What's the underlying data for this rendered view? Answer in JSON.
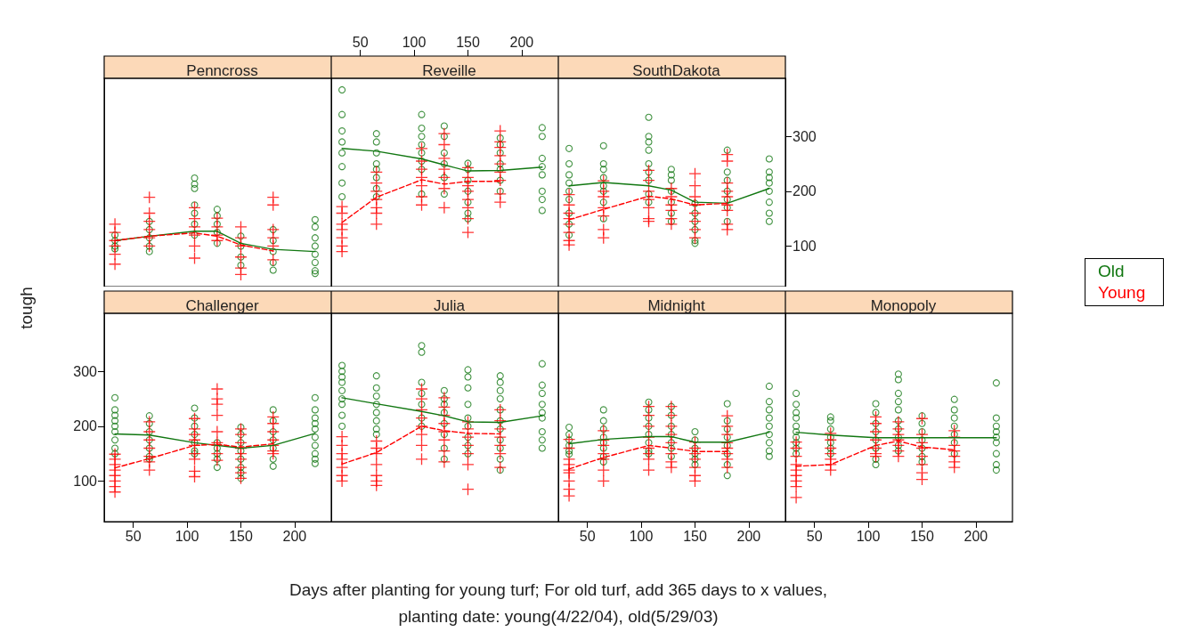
{
  "chart_data": [
    {
      "type": "scatter",
      "title": "Penncross",
      "xlabel": "Days after planting for young turf; For old turf, add 365 days to x values,\nplanting date: young(4/22/04), old(5/29/03)",
      "ylabel": "tough",
      "legend": "right",
      "xlim": [
        23,
        234
      ],
      "xticks": [
        50,
        100,
        150,
        200
      ],
      "ylim": [
        26,
        406
      ],
      "yticks": [
        100,
        200,
        300
      ],
      "tick_labels": false,
      "series": [
        {
          "name": "Old",
          "color": "#117711",
          "marker": "circle",
          "x": [
            33,
            33,
            33,
            33,
            65,
            65,
            65,
            65,
            65,
            107,
            107,
            107,
            107,
            107,
            107,
            107,
            128,
            128,
            128,
            128,
            128,
            150,
            150,
            150,
            150,
            180,
            180,
            180,
            180,
            180,
            219,
            219,
            219,
            219,
            219,
            219,
            219,
            219
          ],
          "values": [
            120,
            110,
            100,
            95,
            145,
            130,
            115,
            100,
            90,
            224,
            213,
            205,
            175,
            160,
            140,
            120,
            167,
            155,
            140,
            125,
            105,
            118,
            100,
            80,
            65,
            130,
            110,
            90,
            70,
            56,
            148,
            135,
            115,
            100,
            85,
            70,
            55,
            50
          ]
        },
        {
          "name": "Young",
          "color": "#ff0000",
          "marker": "cross",
          "x": [
            33,
            33,
            33,
            33,
            33,
            33,
            65,
            65,
            65,
            65,
            65,
            65,
            107,
            107,
            107,
            107,
            107,
            107,
            128,
            128,
            128,
            128,
            150,
            150,
            150,
            150,
            150,
            150,
            180,
            180,
            180,
            180,
            180,
            180
          ],
          "values": [
            140,
            125,
            110,
            100,
            85,
            67,
            189,
            160,
            145,
            130,
            115,
            100,
            170,
            150,
            135,
            120,
            100,
            78,
            151,
            135,
            120,
            110,
            135,
            115,
            100,
            80,
            60,
            48,
            189,
            175,
            130,
            115,
            100,
            75
          ]
        },
        {
          "type": "line",
          "color": "#117711",
          "line_style": "solid",
          "x": [
            33,
            65,
            107,
            128,
            150,
            180,
            219
          ],
          "values": [
            110,
            118,
            127,
            127,
            105,
            94,
            90
          ]
        },
        {
          "type": "line",
          "color": "#ff0000",
          "line_style": "dashed",
          "x": [
            33,
            65,
            107,
            128,
            150,
            180
          ],
          "values": [
            110,
            118,
            124,
            118,
            102,
            91
          ]
        }
      ]
    },
    {
      "type": "scatter",
      "title": "Reveille",
      "xlim": [
        23,
        234
      ],
      "xticks": [
        50,
        100,
        150,
        200
      ],
      "ylim": [
        26,
        406
      ],
      "yticks": [
        100,
        200,
        300
      ],
      "tick_labels": "x",
      "series": [
        {
          "color": "#117711",
          "marker": "circle",
          "x": [
            33,
            33,
            33,
            33,
            33,
            33,
            33,
            33,
            65,
            65,
            65,
            65,
            65,
            65,
            65,
            65,
            107,
            107,
            107,
            107,
            107,
            107,
            107,
            107,
            128,
            128,
            128,
            128,
            128,
            128,
            150,
            150,
            150,
            150,
            150,
            150,
            150,
            180,
            180,
            180,
            180,
            180,
            180,
            180,
            219,
            219,
            219,
            219,
            219,
            219,
            219,
            219
          ],
          "values": [
            385,
            340,
            310,
            290,
            270,
            245,
            215,
            190,
            305,
            290,
            270,
            250,
            240,
            225,
            205,
            190,
            340,
            315,
            300,
            285,
            270,
            255,
            240,
            195,
            319,
            300,
            270,
            250,
            225,
            195,
            251,
            240,
            220,
            200,
            180,
            160,
            150,
            297,
            285,
            270,
            250,
            240,
            220,
            200,
            316,
            300,
            260,
            245,
            230,
            200,
            185,
            165
          ]
        },
        {
          "color": "#ff0000",
          "marker": "cross",
          "x": [
            33,
            33,
            33,
            33,
            33,
            33,
            33,
            65,
            65,
            65,
            65,
            65,
            65,
            65,
            107,
            107,
            107,
            107,
            107,
            107,
            107,
            128,
            128,
            128,
            128,
            128,
            128,
            128,
            150,
            150,
            150,
            150,
            150,
            150,
            150,
            150,
            180,
            180,
            180,
            180,
            180,
            180,
            180,
            180,
            180
          ],
          "values": [
            172,
            160,
            140,
            130,
            115,
            100,
            90,
            235,
            215,
            200,
            185,
            170,
            160,
            140,
            278,
            255,
            240,
            225,
            210,
            190,
            175,
            305,
            285,
            260,
            240,
            225,
            205,
            170,
            243,
            225,
            210,
            200,
            185,
            170,
            150,
            125,
            310,
            290,
            280,
            265,
            250,
            235,
            220,
            195,
            180
          ]
        },
        {
          "type": "line",
          "color": "#117711",
          "line_style": "solid",
          "x": [
            33,
            65,
            107,
            128,
            150,
            180,
            219
          ],
          "values": [
            278,
            273,
            259,
            248,
            237,
            238,
            244
          ]
        },
        {
          "type": "line",
          "color": "#ff0000",
          "line_style": "dashed",
          "x": [
            33,
            65,
            107,
            128,
            150,
            180
          ],
          "values": [
            143,
            189,
            221,
            213,
            218,
            218
          ]
        }
      ]
    },
    {
      "type": "scatter",
      "title": "SouthDakota",
      "xlim": [
        23,
        234
      ],
      "xticks": [
        50,
        100,
        150,
        200
      ],
      "ylim": [
        26,
        406
      ],
      "yticks": [
        100,
        200,
        300
      ],
      "tick_labels": "y",
      "series": [
        {
          "color": "#117711",
          "marker": "circle",
          "x": [
            33,
            33,
            33,
            33,
            33,
            33,
            33,
            33,
            33,
            65,
            65,
            65,
            65,
            65,
            65,
            65,
            65,
            107,
            107,
            107,
            107,
            107,
            107,
            107,
            107,
            107,
            128,
            128,
            128,
            128,
            128,
            128,
            128,
            150,
            150,
            150,
            150,
            150,
            150,
            180,
            180,
            180,
            180,
            180,
            180,
            180,
            219,
            219,
            219,
            219,
            219,
            219,
            219,
            219
          ],
          "values": [
            278,
            250,
            230,
            215,
            200,
            185,
            160,
            140,
            120,
            283,
            250,
            240,
            225,
            210,
            200,
            180,
            150,
            335,
            300,
            290,
            275,
            250,
            235,
            220,
            195,
            180,
            240,
            230,
            220,
            200,
            180,
            160,
            145,
            178,
            160,
            145,
            130,
            110,
            105,
            275,
            235,
            220,
            200,
            185,
            170,
            145,
            259,
            235,
            225,
            215,
            200,
            180,
            160,
            145
          ]
        },
        {
          "color": "#ff0000",
          "marker": "cross",
          "x": [
            33,
            33,
            33,
            33,
            33,
            33,
            33,
            33,
            65,
            65,
            65,
            65,
            65,
            65,
            65,
            107,
            107,
            107,
            107,
            107,
            107,
            107,
            128,
            128,
            128,
            128,
            128,
            128,
            150,
            150,
            150,
            150,
            150,
            150,
            150,
            150,
            180,
            180,
            180,
            180,
            180,
            180,
            180,
            180,
            180
          ],
          "values": [
            194,
            175,
            160,
            150,
            140,
            125,
            110,
            102,
            219,
            200,
            190,
            170,
            155,
            130,
            115,
            238,
            220,
            200,
            185,
            170,
            150,
            145,
            205,
            190,
            175,
            165,
            150,
            140,
            232,
            210,
            190,
            175,
            160,
            145,
            130,
            115,
            267,
            255,
            215,
            200,
            190,
            175,
            165,
            140,
            130
          ]
        },
        {
          "type": "line",
          "color": "#117711",
          "line_style": "solid",
          "x": [
            33,
            65,
            107,
            128,
            150,
            180,
            219
          ],
          "values": [
            210,
            216,
            210,
            202,
            180,
            178,
            205
          ]
        },
        {
          "type": "line",
          "color": "#ff0000",
          "line_style": "dashed",
          "x": [
            33,
            65,
            107,
            128,
            150,
            180
          ],
          "values": [
            148,
            167,
            191,
            186,
            175,
            178
          ]
        }
      ]
    },
    {
      "type": "scatter",
      "title": "Challenger",
      "xlim": [
        23,
        234
      ],
      "xticks": [
        50,
        100,
        150,
        200
      ],
      "ylim": [
        26,
        406
      ],
      "yticks": [
        100,
        200,
        300
      ],
      "series": [
        {
          "color": "#117711",
          "marker": "circle",
          "x": [
            33,
            33,
            33,
            33,
            33,
            33,
            33,
            33,
            33,
            65,
            65,
            65,
            65,
            65,
            65,
            65,
            107,
            107,
            107,
            107,
            107,
            107,
            107,
            128,
            128,
            128,
            128,
            128,
            150,
            150,
            150,
            150,
            150,
            150,
            150,
            150,
            180,
            180,
            180,
            180,
            180,
            180,
            180,
            219,
            219,
            219,
            219,
            219,
            219,
            219,
            219,
            219,
            219
          ],
          "values": [
            252,
            230,
            220,
            210,
            200,
            190,
            175,
            160,
            150,
            219,
            205,
            190,
            175,
            160,
            145,
            140,
            233,
            215,
            200,
            185,
            170,
            155,
            150,
            170,
            160,
            150,
            140,
            125,
            198,
            185,
            170,
            155,
            140,
            125,
            115,
            105,
            230,
            210,
            190,
            175,
            160,
            140,
            127,
            252,
            230,
            215,
            205,
            195,
            180,
            165,
            150,
            140,
            132
          ]
        },
        {
          "color": "#ff0000",
          "marker": "cross",
          "x": [
            33,
            33,
            33,
            33,
            33,
            33,
            33,
            33,
            65,
            65,
            65,
            65,
            65,
            65,
            65,
            107,
            107,
            107,
            107,
            107,
            107,
            107,
            107,
            107,
            128,
            128,
            128,
            128,
            128,
            128,
            128,
            128,
            128,
            150,
            150,
            150,
            150,
            150,
            150,
            150,
            150,
            150,
            180,
            180,
            180,
            180,
            180,
            180,
            180
          ],
          "values": [
            149,
            140,
            130,
            120,
            110,
            100,
            90,
            80,
            208,
            190,
            175,
            160,
            145,
            135,
            120,
            214,
            195,
            185,
            175,
            165,
            150,
            140,
            118,
            108,
            268,
            250,
            240,
            220,
            190,
            170,
            165,
            150,
            138,
            195,
            185,
            170,
            160,
            150,
            140,
            125,
            115,
            105,
            217,
            205,
            190,
            175,
            165,
            155,
            150
          ]
        },
        {
          "type": "line",
          "color": "#117711",
          "line_style": "solid",
          "x": [
            33,
            65,
            107,
            128,
            150,
            180,
            219
          ],
          "values": [
            186,
            184,
            170,
            165,
            160,
            165,
            187
          ]
        },
        {
          "type": "line",
          "color": "#ff0000",
          "line_style": "dashed",
          "x": [
            33,
            65,
            107,
            128,
            150,
            180
          ],
          "values": [
            124,
            141,
            165,
            167,
            162,
            168
          ]
        }
      ]
    },
    {
      "type": "scatter",
      "title": "Julia",
      "xlim": [
        23,
        234
      ],
      "xticks": [
        50,
        100,
        150,
        200
      ],
      "ylim": [
        26,
        406
      ],
      "yticks": [
        100,
        200,
        300
      ],
      "tick_labels": false,
      "series": [
        {
          "color": "#117711",
          "marker": "circle",
          "x": [
            33,
            33,
            33,
            33,
            33,
            33,
            33,
            33,
            33,
            65,
            65,
            65,
            65,
            65,
            65,
            65,
            65,
            107,
            107,
            107,
            107,
            107,
            107,
            107,
            128,
            128,
            128,
            128,
            128,
            128,
            128,
            128,
            150,
            150,
            150,
            150,
            150,
            150,
            150,
            150,
            150,
            180,
            180,
            180,
            180,
            180,
            180,
            180,
            180,
            180,
            180,
            180,
            219,
            219,
            219,
            219,
            219,
            219,
            219,
            219,
            219
          ],
          "values": [
            311,
            300,
            290,
            280,
            265,
            250,
            240,
            220,
            200,
            292,
            270,
            255,
            240,
            225,
            210,
            195,
            185,
            347,
            335,
            280,
            260,
            240,
            215,
            200,
            265,
            250,
            240,
            225,
            205,
            185,
            160,
            140,
            303,
            290,
            270,
            240,
            215,
            200,
            180,
            165,
            150,
            292,
            280,
            265,
            250,
            230,
            210,
            195,
            175,
            160,
            140,
            120,
            314,
            275,
            260,
            240,
            225,
            215,
            190,
            175,
            160
          ]
        },
        {
          "color": "#ff0000",
          "marker": "cross",
          "x": [
            33,
            33,
            33,
            33,
            33,
            33,
            33,
            65,
            65,
            65,
            65,
            65,
            65,
            65,
            107,
            107,
            107,
            107,
            107,
            107,
            107,
            107,
            128,
            128,
            128,
            128,
            128,
            128,
            128,
            128,
            150,
            150,
            150,
            150,
            150,
            150,
            150,
            180,
            180,
            180,
            180,
            180,
            180,
            180
          ],
          "values": [
            181,
            165,
            150,
            140,
            125,
            110,
            100,
            173,
            160,
            150,
            130,
            110,
            100,
            92,
            268,
            250,
            230,
            215,
            200,
            185,
            165,
            140,
            252,
            235,
            220,
            205,
            190,
            175,
            155,
            135,
            208,
            195,
            180,
            165,
            150,
            130,
            85,
            230,
            210,
            195,
            180,
            165,
            150,
            125
          ]
        },
        {
          "type": "line",
          "color": "#117711",
          "line_style": "solid",
          "x": [
            33,
            65,
            107,
            128,
            150,
            180,
            219
          ],
          "values": [
            252,
            241,
            227,
            219,
            208,
            207,
            219
          ]
        },
        {
          "type": "line",
          "color": "#ff0000",
          "line_style": "dashed",
          "x": [
            33,
            65,
            107,
            128,
            150,
            180
          ],
          "values": [
            131,
            152,
            200,
            192,
            187,
            186
          ]
        }
      ]
    },
    {
      "type": "scatter",
      "title": "Midnight",
      "xlim": [
        23,
        234
      ],
      "xticks": [
        50,
        100,
        150,
        200
      ],
      "ylim": [
        26,
        406
      ],
      "yticks": [
        100,
        200,
        300
      ],
      "tick_labels": "x",
      "series": [
        {
          "color": "#117711",
          "marker": "circle",
          "x": [
            33,
            33,
            33,
            33,
            33,
            33,
            65,
            65,
            65,
            65,
            65,
            65,
            65,
            65,
            107,
            107,
            107,
            107,
            107,
            107,
            107,
            107,
            128,
            128,
            128,
            128,
            128,
            128,
            128,
            150,
            150,
            150,
            150,
            150,
            150,
            180,
            180,
            180,
            180,
            180,
            180,
            180,
            180,
            219,
            219,
            219,
            219,
            219,
            219,
            219,
            219,
            219
          ],
          "values": [
            198,
            185,
            175,
            165,
            155,
            149,
            230,
            210,
            195,
            180,
            170,
            160,
            145,
            135,
            244,
            230,
            215,
            200,
            185,
            170,
            155,
            150,
            236,
            220,
            200,
            185,
            170,
            160,
            145,
            190,
            175,
            160,
            150,
            140,
            130,
            241,
            210,
            195,
            180,
            165,
            150,
            130,
            110,
            273,
            245,
            230,
            215,
            200,
            185,
            170,
            155,
            145
          ]
        },
        {
          "color": "#ff0000",
          "marker": "cross",
          "x": [
            33,
            33,
            33,
            33,
            33,
            33,
            33,
            33,
            33,
            65,
            65,
            65,
            65,
            65,
            65,
            65,
            107,
            107,
            107,
            107,
            107,
            107,
            107,
            107,
            128,
            128,
            128,
            128,
            128,
            128,
            128,
            128,
            150,
            150,
            150,
            150,
            150,
            150,
            150,
            180,
            180,
            180,
            180,
            180,
            180,
            180,
            180
          ],
          "values": [
            176,
            160,
            140,
            130,
            120,
            115,
            100,
            85,
            73,
            192,
            175,
            165,
            150,
            140,
            120,
            100,
            236,
            220,
            200,
            180,
            160,
            150,
            140,
            120,
            236,
            220,
            200,
            185,
            170,
            150,
            135,
            125,
            171,
            160,
            150,
            140,
            125,
            110,
            100,
            219,
            200,
            185,
            170,
            160,
            150,
            140,
            125
          ]
        },
        {
          "type": "line",
          "color": "#117711",
          "line_style": "solid",
          "x": [
            33,
            65,
            107,
            128,
            150,
            180,
            219
          ],
          "values": [
            168,
            176,
            181,
            181,
            171,
            171,
            189
          ]
        },
        {
          "type": "line",
          "color": "#ff0000",
          "line_style": "dashed",
          "x": [
            33,
            65,
            107,
            128,
            150,
            180
          ],
          "values": [
            122,
            143,
            165,
            160,
            154,
            154
          ]
        }
      ]
    },
    {
      "type": "scatter",
      "title": "Monopoly",
      "xlim": [
        23,
        234
      ],
      "xticks": [
        50,
        100,
        150,
        200
      ],
      "ylim": [
        26,
        406
      ],
      "yticks": [
        100,
        200,
        300
      ],
      "tick_labels": "x",
      "series": [
        {
          "color": "#117711",
          "marker": "circle",
          "x": [
            33,
            33,
            33,
            33,
            33,
            33,
            33,
            33,
            33,
            33,
            65,
            65,
            65,
            65,
            65,
            65,
            65,
            107,
            107,
            107,
            107,
            107,
            107,
            107,
            107,
            128,
            128,
            128,
            128,
            128,
            128,
            128,
            128,
            128,
            128,
            150,
            150,
            150,
            150,
            150,
            150,
            150,
            180,
            180,
            180,
            180,
            180,
            180,
            180,
            219,
            219,
            219,
            219,
            219,
            219,
            219,
            219,
            219
          ],
          "values": [
            260,
            240,
            225,
            215,
            200,
            190,
            180,
            170,
            160,
            150,
            217,
            210,
            195,
            180,
            170,
            160,
            150,
            241,
            225,
            205,
            190,
            175,
            160,
            140,
            130,
            295,
            285,
            260,
            245,
            230,
            210,
            195,
            180,
            165,
            155,
            219,
            205,
            190,
            175,
            160,
            145,
            135,
            249,
            230,
            215,
            200,
            185,
            170,
            150,
            279,
            215,
            200,
            190,
            180,
            170,
            150,
            130,
            120
          ]
        },
        {
          "color": "#ff0000",
          "marker": "cross",
          "x": [
            33,
            33,
            33,
            33,
            33,
            33,
            33,
            33,
            33,
            65,
            65,
            65,
            65,
            65,
            65,
            65,
            107,
            107,
            107,
            107,
            107,
            107,
            107,
            128,
            128,
            128,
            128,
            128,
            128,
            128,
            150,
            150,
            150,
            150,
            150,
            150,
            150,
            150,
            180,
            180,
            180,
            180,
            180,
            180,
            180
          ],
          "values": [
            171,
            160,
            145,
            130,
            120,
            110,
            100,
            90,
            70,
            187,
            175,
            160,
            150,
            140,
            130,
            120,
            217,
            205,
            190,
            175,
            160,
            150,
            145,
            208,
            195,
            185,
            175,
            165,
            155,
            145,
            214,
            185,
            170,
            160,
            145,
            130,
            115,
            103,
            192,
            180,
            165,
            155,
            145,
            135,
            125
          ]
        },
        {
          "type": "line",
          "color": "#117711",
          "line_style": "solid",
          "x": [
            33,
            65,
            107,
            128,
            150,
            180,
            219
          ],
          "values": [
            189,
            184,
            179,
            179,
            179,
            179,
            179
          ]
        },
        {
          "type": "line",
          "color": "#ff0000",
          "line_style": "dashed",
          "x": [
            33,
            65,
            107,
            128,
            150,
            180
          ],
          "values": [
            127,
            130,
            165,
            173,
            162,
            157
          ]
        }
      ]
    }
  ]
}
